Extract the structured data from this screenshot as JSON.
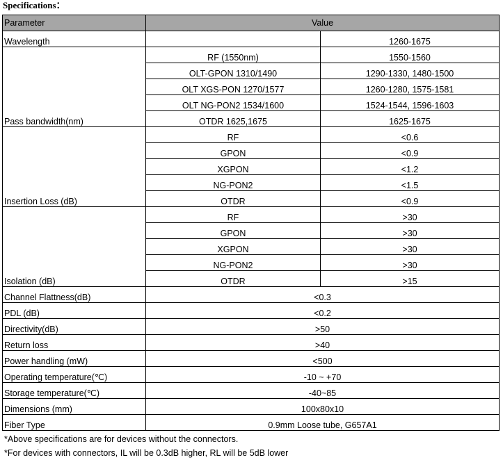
{
  "title": "Specifications：",
  "header": {
    "parameter": "Parameter",
    "value": "Value"
  },
  "wavelength": {
    "label": "Wavelength",
    "value": "1260-1675"
  },
  "pass_bandwidth": {
    "label": "Pass bandwidth(nm)",
    "rows": [
      {
        "sub": "RF (1550nm)",
        "value": "1550-1560"
      },
      {
        "sub": "OLT-GPON 1310/1490",
        "value": "1290-1330, 1480-1500"
      },
      {
        "sub": "OLT XGS-PON 1270/1577",
        "value": "1260-1280, 1575-1581"
      },
      {
        "sub": "OLT NG-PON2 1534/1600",
        "value": "1524-1544, 1596-1603"
      },
      {
        "sub": "OTDR 1625,1675",
        "value": "1625-1675"
      }
    ]
  },
  "insertion_loss": {
    "label": "Insertion Loss (dB)",
    "rows": [
      {
        "sub": "RF",
        "value": "<0.6"
      },
      {
        "sub": "GPON",
        "value": "<0.9"
      },
      {
        "sub": "XGPON",
        "value": "<1.2"
      },
      {
        "sub": "NG-PON2",
        "value": "<1.5"
      },
      {
        "sub": "OTDR",
        "value": "<0.9"
      }
    ]
  },
  "isolation": {
    "label": "Isolation (dB)",
    "rows": [
      {
        "sub": "RF",
        "value": ">30"
      },
      {
        "sub": "GPON",
        "value": ">30"
      },
      {
        "sub": "XGPON",
        "value": ">30"
      },
      {
        "sub": "NG-PON2",
        "value": ">30"
      },
      {
        "sub": "OTDR",
        "value": ">15"
      }
    ]
  },
  "simple_rows": [
    {
      "label": "Channel Flattness(dB)",
      "value": "<0.3"
    },
    {
      "label": "PDL (dB)",
      "value": "<0.2"
    },
    {
      "label": "Directivity(dB)",
      "value": ">50"
    },
    {
      "label": "Return loss",
      "value": ">40"
    },
    {
      "label": "Power handling (mW)",
      "value": "<500"
    },
    {
      "label": "Operating temperature(℃)",
      "value": "-10 ~ +70"
    },
    {
      "label": "Storage temperature(℃)",
      "value": "-40~85"
    },
    {
      "label": "Dimensions (mm)",
      "value": "100x80x10"
    },
    {
      "label": "Fiber Type",
      "value": "0.9mm Loose tube, G657A1"
    }
  ],
  "notes": [
    "*Above specifications are for devices without the connectors.",
    "*For devices with connectors, IL will be 0.3dB higher, RL will be 5dB lower"
  ]
}
